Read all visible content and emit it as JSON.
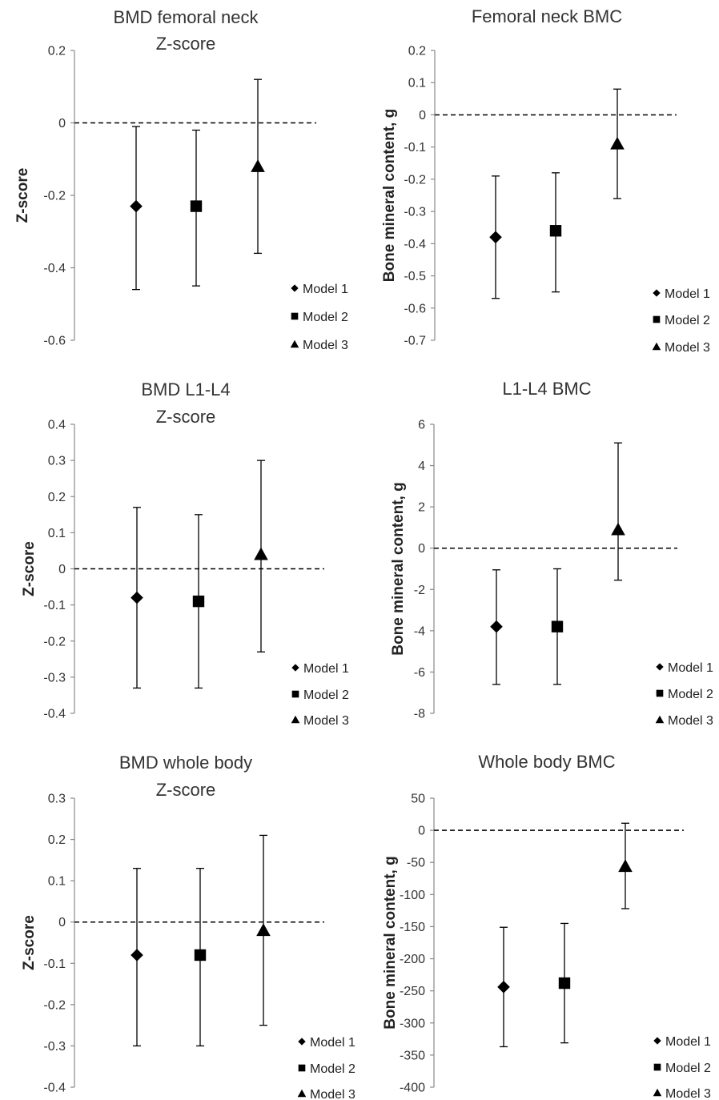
{
  "figure": {
    "legend": {
      "position": "bottom-right",
      "entries": [
        {
          "label": "Model 1",
          "marker": "diamond-icon"
        },
        {
          "label": "Model 2",
          "marker": "square-icon"
        },
        {
          "label": "Model 3",
          "marker": "triangle-icon"
        }
      ]
    }
  },
  "chart_data": [
    {
      "type": "scatter",
      "title": [
        "BMD femoral neck",
        "Z-score"
      ],
      "ylabel": "Z-score",
      "ylim": [
        -0.6,
        0.2
      ],
      "yticks": [
        "0.2",
        "0",
        "-0.2",
        "-0.4",
        "-0.6"
      ],
      "ytick_values": [
        0.2,
        0,
        -0.2,
        -0.4,
        -0.6
      ],
      "reference_line": 0,
      "grid": false,
      "legend": "bottom-right",
      "series": [
        {
          "name": "Model 1",
          "marker": "diamond",
          "value": -0.23,
          "ci": [
            -0.46,
            -0.01
          ]
        },
        {
          "name": "Model 2",
          "marker": "square",
          "value": -0.23,
          "ci": [
            -0.45,
            -0.02
          ]
        },
        {
          "name": "Model 3",
          "marker": "triangle",
          "value": -0.12,
          "ci": [
            -0.36,
            0.12
          ]
        }
      ]
    },
    {
      "type": "scatter",
      "title": [
        "Femoral neck BMC"
      ],
      "ylabel": "Bone mineral content, g",
      "ylim": [
        -0.7,
        0.2
      ],
      "yticks": [
        "0.2",
        "0.1",
        "0",
        "-0.1",
        "-0.2",
        "-0.3",
        "-0.4",
        "-0.5",
        "-0.6",
        "-0.7"
      ],
      "ytick_values": [
        0.2,
        0.1,
        0,
        -0.1,
        -0.2,
        -0.3,
        -0.4,
        -0.5,
        -0.6,
        -0.7
      ],
      "reference_line": 0,
      "grid": false,
      "legend": "bottom-right",
      "series": [
        {
          "name": "Model 1",
          "marker": "diamond",
          "value": -0.38,
          "ci": [
            -0.57,
            -0.19
          ]
        },
        {
          "name": "Model 2",
          "marker": "square",
          "value": -0.36,
          "ci": [
            -0.55,
            -0.18
          ]
        },
        {
          "name": "Model 3",
          "marker": "triangle",
          "value": -0.09,
          "ci": [
            -0.26,
            0.08
          ]
        }
      ]
    },
    {
      "type": "scatter",
      "title": [
        "BMD L1-L4",
        "Z-score"
      ],
      "ylabel": "Z-score",
      "ylim": [
        -0.4,
        0.4
      ],
      "yticks": [
        "0.4",
        "0.3",
        "0.2",
        "0.1",
        "0",
        "-0.1",
        "-0.2",
        "-0.3",
        "-0.4"
      ],
      "ytick_values": [
        0.4,
        0.3,
        0.2,
        0.1,
        0,
        -0.1,
        -0.2,
        -0.3,
        -0.4
      ],
      "reference_line": 0,
      "grid": false,
      "legend": "bottom-right",
      "series": [
        {
          "name": "Model 1",
          "marker": "diamond",
          "value": -0.08,
          "ci": [
            -0.33,
            0.17
          ]
        },
        {
          "name": "Model 2",
          "marker": "square",
          "value": -0.09,
          "ci": [
            -0.33,
            0.15
          ]
        },
        {
          "name": "Model 3",
          "marker": "triangle",
          "value": 0.04,
          "ci": [
            -0.23,
            0.3
          ]
        }
      ]
    },
    {
      "type": "scatter",
      "title": [
        "L1-L4 BMC"
      ],
      "ylabel": "Bone mineral content, g",
      "ylim": [
        -8,
        6
      ],
      "yticks": [
        "6",
        "4",
        "2",
        "0",
        "-2",
        "-4",
        "-6",
        "-8"
      ],
      "ytick_values": [
        6,
        4,
        2,
        0,
        -2,
        -4,
        -6,
        -8
      ],
      "reference_line": 0,
      "grid": false,
      "legend": "bottom-right",
      "series": [
        {
          "name": "Model 1",
          "marker": "diamond",
          "value": -3.8,
          "ci": [
            -6.6,
            -1.05
          ]
        },
        {
          "name": "Model 2",
          "marker": "square",
          "value": -3.8,
          "ci": [
            -6.6,
            -1.0
          ]
        },
        {
          "name": "Model 3",
          "marker": "triangle",
          "value": 0.9,
          "ci": [
            -1.55,
            5.1
          ]
        }
      ]
    },
    {
      "type": "scatter",
      "title": [
        "BMD whole body",
        "Z-score"
      ],
      "ylabel": "Z-score",
      "ylim": [
        -0.4,
        0.3
      ],
      "yticks": [
        "0.3",
        "0.2",
        "0.1",
        "0",
        "-0.1",
        "-0.2",
        "-0.3",
        "-0.4"
      ],
      "ytick_values": [
        0.3,
        0.2,
        0.1,
        0,
        -0.1,
        -0.2,
        -0.3,
        -0.4
      ],
      "reference_line": 0,
      "grid": false,
      "legend": "bottom-right",
      "series": [
        {
          "name": "Model 1",
          "marker": "diamond",
          "value": -0.08,
          "ci": [
            -0.3,
            0.13
          ]
        },
        {
          "name": "Model 2",
          "marker": "square",
          "value": -0.08,
          "ci": [
            -0.3,
            0.13
          ]
        },
        {
          "name": "Model 3",
          "marker": "triangle",
          "value": -0.02,
          "ci": [
            -0.25,
            0.21
          ]
        }
      ]
    },
    {
      "type": "scatter",
      "title": [
        "Whole body BMC"
      ],
      "ylabel": "Bone mineral content, g",
      "ylim": [
        -400,
        50
      ],
      "yticks": [
        "50",
        "0",
        "-50",
        "-100",
        "-150",
        "-200",
        "-250",
        "-300",
        "-350",
        "-400"
      ],
      "ytick_values": [
        50,
        0,
        -50,
        -100,
        -150,
        -200,
        -250,
        -300,
        -350,
        -400
      ],
      "reference_line": 0,
      "grid": false,
      "legend": "bottom-right",
      "series": [
        {
          "name": "Model 1",
          "marker": "diamond",
          "value": -244,
          "ci": [
            -337,
            -151
          ]
        },
        {
          "name": "Model 2",
          "marker": "square",
          "value": -238,
          "ci": [
            -331,
            -145
          ]
        },
        {
          "name": "Model 3",
          "marker": "triangle",
          "value": -56,
          "ci": [
            -122,
            11
          ]
        }
      ]
    }
  ]
}
